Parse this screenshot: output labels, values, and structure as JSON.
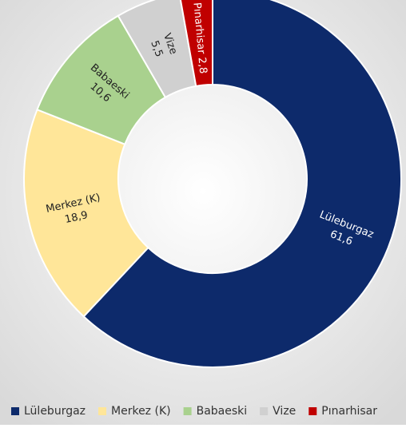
{
  "chart_data": {
    "type": "donut",
    "categories": [
      "Lüleburgaz",
      "Merkez (K)",
      "Babaeski",
      "Vize",
      "Pınarhisar"
    ],
    "values": [
      61.6,
      18.9,
      10.6,
      5.5,
      2.8
    ],
    "value_labels": [
      "61,6",
      "18,9",
      "10,6",
      "5,5",
      "2,8"
    ],
    "colors": [
      "#0d2a6b",
      "#ffe699",
      "#a9d18e",
      "#d0d0d0",
      "#c00000"
    ],
    "legend": "bottom"
  }
}
